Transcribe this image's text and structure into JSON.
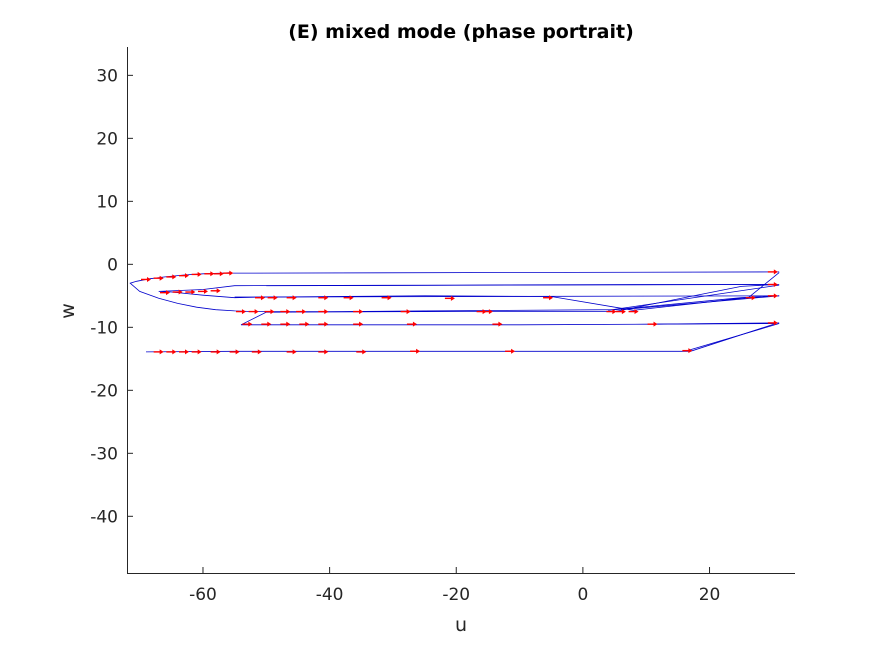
{
  "chart_data": {
    "type": "line",
    "title": "(E) mixed mode (phase portrait)",
    "xlabel": "u",
    "ylabel": "w",
    "xlim": [
      -72,
      33.5
    ],
    "ylim": [
      -49,
      34.5
    ],
    "x_ticks": [
      -60,
      -40,
      -20,
      0,
      20
    ],
    "y_ticks": [
      30,
      20,
      10,
      0,
      -10,
      -20,
      -30,
      -40
    ],
    "grid": false,
    "colors": {
      "trajectory": "#0000CC",
      "arrow": "#FF0000",
      "axis": "#262626"
    },
    "series": [
      {
        "points": [
          [
            -55.5,
            -1.3
          ],
          [
            -57,
            -1.4
          ],
          [
            -60,
            -1.5
          ],
          [
            -63,
            -1.7
          ],
          [
            -66,
            -2.0
          ],
          [
            -68.5,
            -2.3
          ],
          [
            -70.5,
            -2.7
          ],
          [
            -71.5,
            -3.0
          ],
          [
            -70,
            -4.3
          ],
          [
            -67,
            -5.4
          ],
          [
            -64,
            -6.2
          ],
          [
            -61,
            -6.8
          ],
          [
            -58,
            -7.2
          ],
          [
            -55,
            -7.4
          ],
          [
            -52,
            -7.5
          ],
          [
            -40,
            -7.5
          ],
          [
            -25,
            -7.4
          ],
          [
            5,
            -7.2
          ],
          [
            25,
            -5.3
          ],
          [
            30.5,
            -5.0
          ],
          [
            26,
            -5.3
          ],
          [
            8,
            -7.3
          ],
          [
            -5,
            -5.1
          ],
          [
            -25,
            -5.0
          ],
          [
            -40,
            -5.1
          ],
          [
            -51,
            -5.2
          ],
          [
            -55,
            -5.3
          ],
          [
            -60,
            -4.9
          ],
          [
            -65,
            -4.4
          ],
          [
            -67,
            -4.3
          ],
          [
            -60,
            -4.0
          ],
          [
            -55,
            -3.4
          ],
          [
            -20,
            -3.3
          ],
          [
            10,
            -3.2
          ],
          [
            30.5,
            -3.2
          ],
          [
            25,
            -3.5
          ],
          [
            5,
            -7.5
          ],
          [
            -25,
            -7.5
          ],
          [
            -50,
            -7.6
          ],
          [
            -54,
            -9.6
          ],
          [
            -45,
            -9.6
          ],
          [
            -30,
            -9.6
          ],
          [
            -10,
            -9.6
          ],
          [
            10,
            -9.5
          ],
          [
            30.5,
            -9.4
          ],
          [
            17,
            -13.8
          ],
          [
            0,
            -13.8
          ],
          [
            -20,
            -13.8
          ],
          [
            -40,
            -13.8
          ],
          [
            -55,
            -13.8
          ],
          [
            -69,
            -13.9
          ]
        ],
        "extra_segments": [
          [
            [
              -55.5,
              -1.4
            ],
            [
              31,
              -1.2
            ]
          ],
          [
            [
              -50,
              -3.4
            ],
            [
              31,
              -3.2
            ]
          ],
          [
            [
              -55,
              -5.2
            ],
            [
              31,
              -5.0
            ]
          ],
          [
            [
              11,
              -9.5
            ],
            [
              31,
              -9.3
            ]
          ],
          [
            [
              16.5,
              -13.7
            ],
            [
              31,
              -9.4
            ]
          ],
          [
            [
              26,
              -5.4
            ],
            [
              31,
              -1.3
            ]
          ],
          [
            [
              4,
              -7.3
            ],
            [
              31,
              -3.3
            ]
          ],
          [
            [
              6,
              -7.2
            ],
            [
              31,
              -5.0
            ]
          ]
        ],
        "arrow_markers": [
          [
            -56,
            -1.4
          ],
          [
            -57.5,
            -1.5
          ],
          [
            -59,
            -1.5
          ],
          [
            -61,
            -1.6
          ],
          [
            -63,
            -1.8
          ],
          [
            -65,
            -2.0
          ],
          [
            -67,
            -2.2
          ],
          [
            -69,
            -2.4
          ],
          [
            -58,
            -4.2
          ],
          [
            -60,
            -4.3
          ],
          [
            -62,
            -4.4
          ],
          [
            -64,
            -4.4
          ],
          [
            -66,
            -4.5
          ],
          [
            -51,
            -5.3
          ],
          [
            -49,
            -5.3
          ],
          [
            -46,
            -5.3
          ],
          [
            -41,
            -5.3
          ],
          [
            -37,
            -5.3
          ],
          [
            -31,
            -5.3
          ],
          [
            -21,
            -5.4
          ],
          [
            -5.5,
            -5.3
          ],
          [
            -54,
            -7.5
          ],
          [
            -52,
            -7.5
          ],
          [
            -49.5,
            -7.5
          ],
          [
            -47,
            -7.5
          ],
          [
            -44.5,
            -7.5
          ],
          [
            -41,
            -7.5
          ],
          [
            -35.5,
            -7.5
          ],
          [
            -28,
            -7.5
          ],
          [
            -16,
            -7.5
          ],
          [
            -15,
            -7.5
          ],
          [
            4.5,
            -7.5
          ],
          [
            6,
            -7.5
          ],
          [
            8,
            -7.5
          ],
          [
            -53,
            -9.5
          ],
          [
            -50,
            -9.5
          ],
          [
            -47,
            -9.5
          ],
          [
            -44,
            -9.5
          ],
          [
            -41,
            -9.5
          ],
          [
            -35.5,
            -9.5
          ],
          [
            -27,
            -9.5
          ],
          [
            -13.5,
            -9.5
          ],
          [
            11,
            -9.5
          ],
          [
            -67,
            -13.9
          ],
          [
            -65,
            -13.9
          ],
          [
            -63,
            -13.9
          ],
          [
            -61,
            -13.9
          ],
          [
            -58,
            -13.9
          ],
          [
            -55,
            -13.9
          ],
          [
            -51.5,
            -13.9
          ],
          [
            -46,
            -13.9
          ],
          [
            -41,
            -13.9
          ],
          [
            -35,
            -13.9
          ],
          [
            -26.5,
            -13.8
          ],
          [
            -11.5,
            -13.8
          ],
          [
            16.5,
            -13.7
          ],
          [
            30,
            -1.2
          ],
          [
            30,
            -3.2
          ],
          [
            30,
            -5.0
          ],
          [
            30,
            -9.3
          ],
          [
            26.5,
            -5.3
          ]
        ]
      }
    ]
  }
}
